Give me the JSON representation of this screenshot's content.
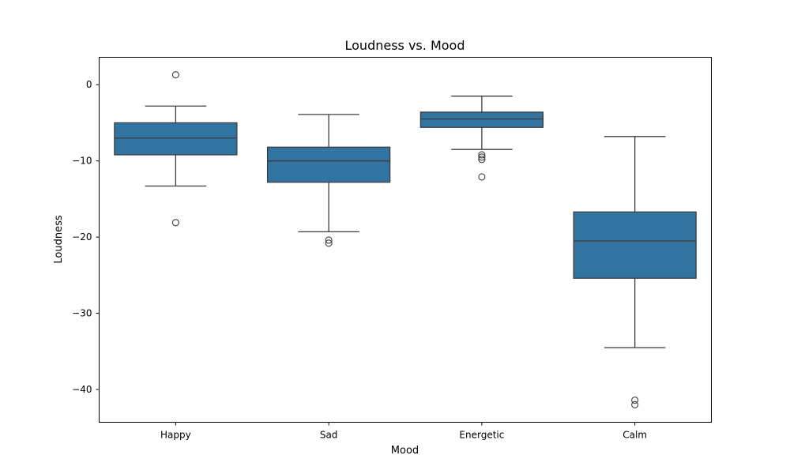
{
  "chart_data": {
    "type": "box",
    "title": "Loudness vs. Mood",
    "xlabel": "Mood",
    "ylabel": "Loudness",
    "ylim": [
      -44.3,
      3.6
    ],
    "yticks": [
      0,
      -10,
      -20,
      -30,
      -40
    ],
    "grid": false,
    "legend": "none",
    "box_color": "#3274a1",
    "line_color": "#3d3d3d",
    "categories": [
      "Happy",
      "Sad",
      "Energetic",
      "Calm"
    ],
    "series": [
      {
        "category": "Happy",
        "whisker_low": -13.3,
        "q1": -9.2,
        "median": -7.0,
        "q3": -5.0,
        "whisker_high": -2.8,
        "outliers": [
          1.3,
          -18.1
        ]
      },
      {
        "category": "Sad",
        "whisker_low": -19.3,
        "q1": -12.8,
        "median": -10.0,
        "q3": -8.2,
        "whisker_high": -3.9,
        "outliers": [
          -20.4,
          -20.8
        ]
      },
      {
        "category": "Energetic",
        "whisker_low": -8.5,
        "q1": -5.6,
        "median": -4.5,
        "q3": -3.6,
        "whisker_high": -1.5,
        "outliers": [
          -9.2,
          -9.5,
          -9.8,
          -12.1
        ]
      },
      {
        "category": "Calm",
        "whisker_low": -34.5,
        "q1": -25.4,
        "median": -20.5,
        "q3": -16.7,
        "whisker_high": -6.8,
        "outliers": [
          -41.4,
          -42.0
        ]
      }
    ]
  }
}
